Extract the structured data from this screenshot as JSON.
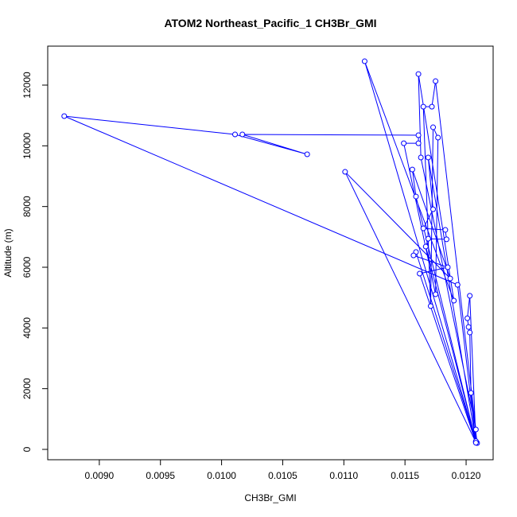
{
  "chart_data": {
    "type": "line",
    "title": "ATOM2 Northeast_Pacific_1 CH3Br_GMI",
    "x_label": "CH3Br_GMI",
    "y_label": "Altitude (m)",
    "color": "#0000ff",
    "markers": true,
    "x": [
      0.01209,
      0.01204,
      0.01203,
      0.01202,
      0.01201,
      0.01203,
      0.01208,
      0.01117,
      0.0119,
      0.01161,
      0.01163,
      0.01208,
      0.01175,
      0.01172,
      0.01165,
      0.01171,
      0.01173,
      0.01177,
      0.01175,
      0.01149,
      0.01161,
      0.01161,
      0.01017,
      0.0107,
      0.01011,
      0.008713,
      0.01193,
      0.01208,
      0.01101,
      0.01187,
      0.01156,
      0.01159,
      0.01208,
      0.01169,
      0.01173,
      0.01165,
      0.01183,
      0.01184,
      0.01169,
      0.01167,
      0.01208,
      0.01159,
      0.01157,
      0.01185,
      0.01162,
      0.01208
    ],
    "y": [
      210,
      1860,
      3850,
      4030,
      4320,
      5060,
      262,
      12785,
      4900,
      12365,
      9615,
      655,
      12130,
      11290,
      11290,
      4720,
      10610,
      10270,
      5110,
      10085,
      10085,
      10350,
      10375,
      9720,
      10375,
      10978,
      5420,
      230,
      9143,
      5630,
      9220,
      8330,
      250,
      9615,
      7910,
      7280,
      7230,
      6920,
      6940,
      6680,
      270,
      6500,
      6390,
      6000,
      5790,
      220
    ],
    "xlim": [
      0.008578,
      0.012221
    ],
    "ylim": [
      -341,
      13284
    ],
    "xticks": [
      {
        "value": 0.009,
        "label": "0.0090"
      },
      {
        "value": 0.0095,
        "label": "0.0095"
      },
      {
        "value": 0.01,
        "label": "0.0100"
      },
      {
        "value": 0.0105,
        "label": "0.0105"
      },
      {
        "value": 0.011,
        "label": "0.0110"
      },
      {
        "value": 0.0115,
        "label": "0.0115"
      },
      {
        "value": 0.012,
        "label": "0.0120"
      }
    ],
    "yticks": [
      0,
      2000,
      4000,
      6000,
      8000,
      10000,
      12000
    ]
  }
}
